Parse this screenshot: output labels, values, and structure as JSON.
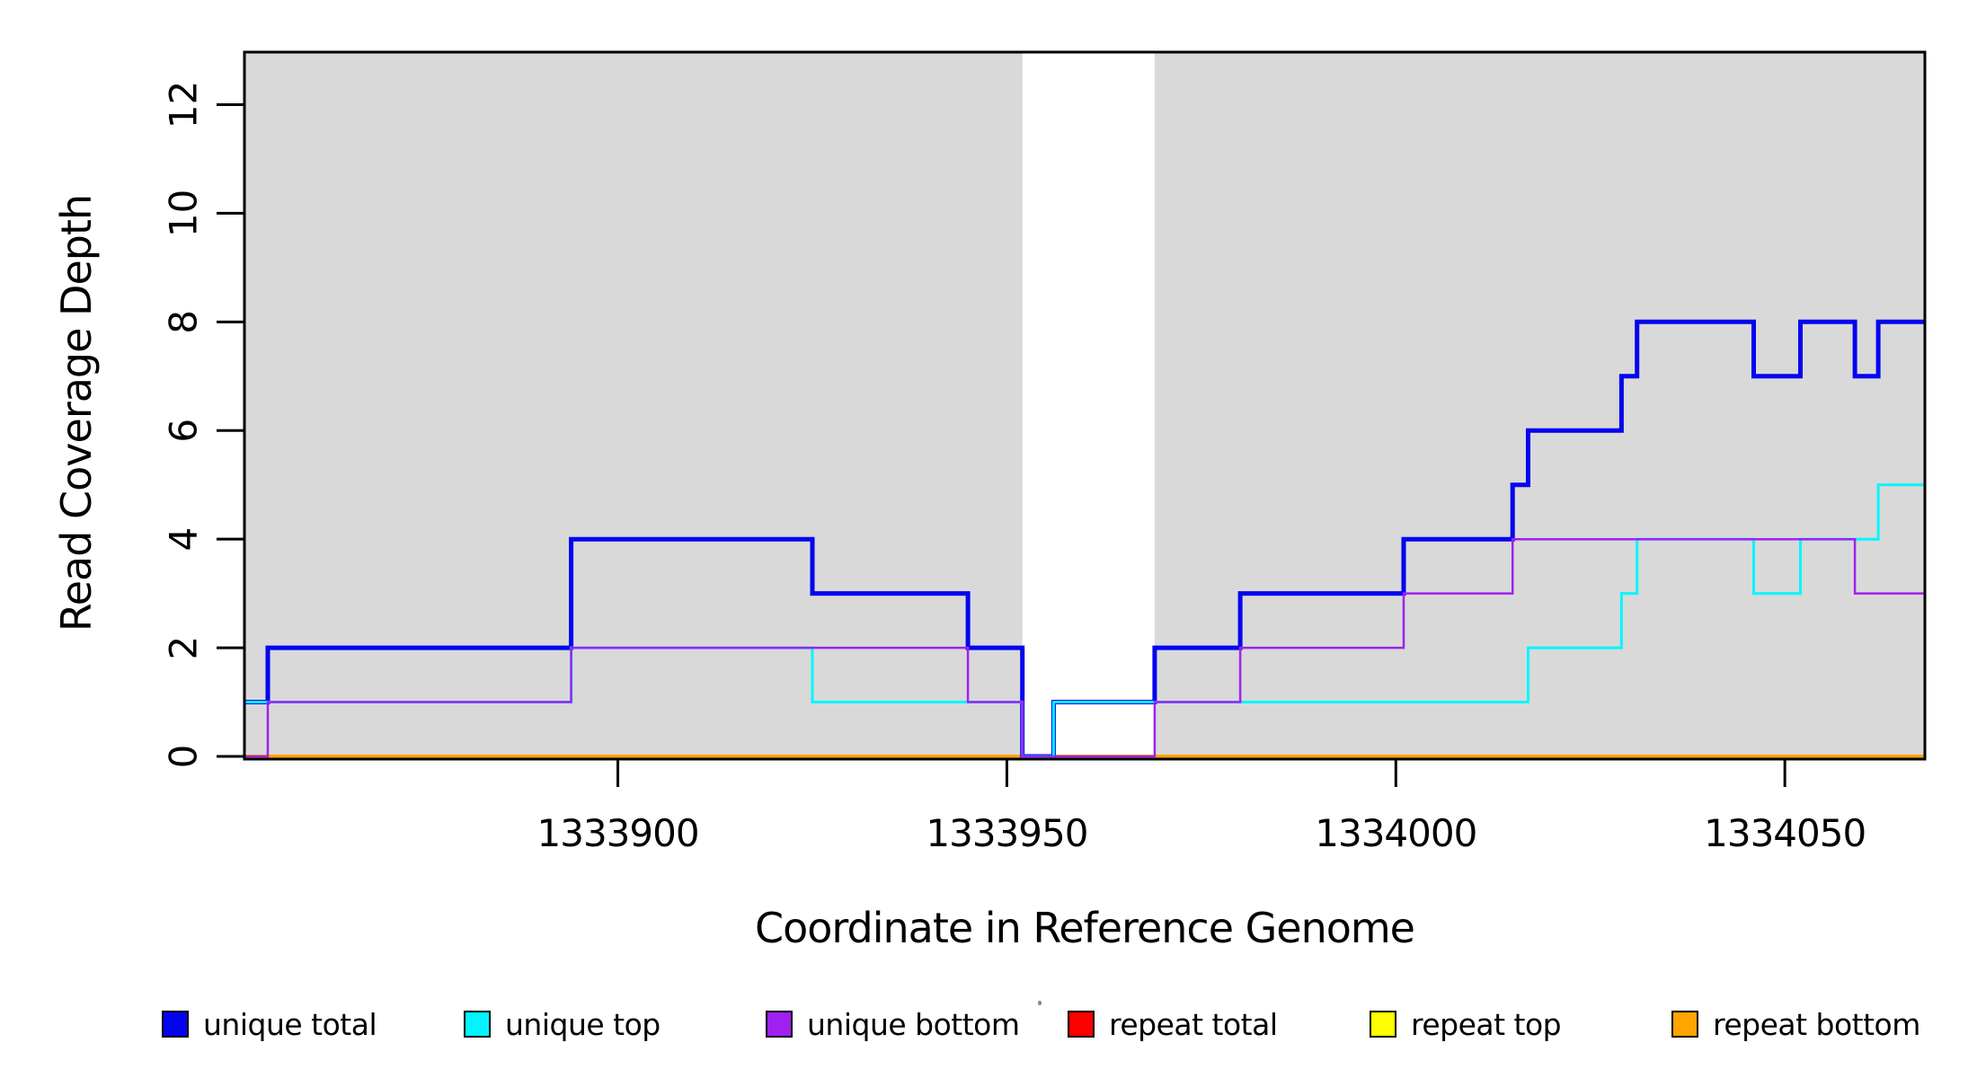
{
  "chart_data": {
    "type": "line",
    "subtype": "step-coverage",
    "title": "",
    "xlabel": "Coordinate in Reference Genome",
    "ylabel": "Read Coverage Depth",
    "xlim": [
      1333852,
      1334068
    ],
    "ylim": [
      0,
      13
    ],
    "grid": false,
    "background_color": "#ffffff",
    "shade_color": "#d9d9d9",
    "shaded_regions": [
      [
        1333852,
        1333952
      ],
      [
        1333969,
        1334068
      ]
    ],
    "x_ticks": [
      {
        "value": 1333900,
        "label": "1333900"
      },
      {
        "value": 1333950,
        "label": "1333950"
      },
      {
        "value": 1334000,
        "label": "1334000"
      },
      {
        "value": 1334050,
        "label": "1334050"
      }
    ],
    "y_ticks": [
      {
        "value": 0,
        "label": "0"
      },
      {
        "value": 2,
        "label": "2"
      },
      {
        "value": 4,
        "label": "4"
      },
      {
        "value": 6,
        "label": "6"
      },
      {
        "value": 8,
        "label": "8"
      },
      {
        "value": 10,
        "label": "10"
      },
      {
        "value": 12,
        "label": "12"
      }
    ],
    "breakpoints": [
      1333852,
      1333855,
      1333894,
      1333925,
      1333945,
      1333952,
      1333956,
      1333969,
      1333980,
      1334001,
      1334015,
      1334017,
      1334029,
      1334031,
      1334046,
      1334052,
      1334059,
      1334062
    ],
    "series": [
      {
        "name": "unique total",
        "color": "#0404f0",
        "width": 5,
        "values": [
          1,
          2,
          4,
          3,
          2,
          0,
          1,
          2,
          3,
          4,
          5,
          6,
          7,
          8,
          7,
          8,
          7,
          8
        ]
      },
      {
        "name": "unique top",
        "color": "#00f6ff",
        "width": 3,
        "values": [
          1,
          1,
          2,
          1,
          1,
          0,
          1,
          1,
          1,
          1,
          1,
          2,
          3,
          4,
          3,
          4,
          4,
          5
        ]
      },
      {
        "name": "unique bottom",
        "color": "#a020f0",
        "width": 2.5,
        "values": [
          0,
          1,
          2,
          2,
          1,
          0,
          0,
          1,
          2,
          3,
          4,
          4,
          4,
          4,
          4,
          4,
          3,
          3
        ]
      },
      {
        "name": "repeat total",
        "color": "#ff0000",
        "width": 2,
        "values": [
          0,
          0,
          0,
          0,
          0,
          0,
          0,
          0,
          0,
          0,
          0,
          0,
          0,
          0,
          0,
          0,
          0,
          0
        ]
      },
      {
        "name": "repeat top",
        "color": "#ffff00",
        "width": 2,
        "values": [
          0,
          0,
          0,
          0,
          0,
          0,
          0,
          0,
          0,
          0,
          0,
          0,
          0,
          0,
          0,
          0,
          0,
          0
        ]
      },
      {
        "name": "repeat bottom",
        "color": "#ffa500",
        "width": 4,
        "values": [
          0,
          0,
          0,
          0,
          0,
          0,
          0,
          0,
          0,
          0,
          0,
          0,
          0,
          0,
          0,
          0,
          0,
          0
        ]
      }
    ],
    "draw_order": [
      "repeat total",
      "repeat top",
      "repeat bottom",
      "unique total",
      "unique top",
      "unique bottom"
    ],
    "legend_position": "bottom",
    "legend": [
      {
        "label": "unique total",
        "color": "#0404f0"
      },
      {
        "label": "unique top",
        "color": "#00f6ff"
      },
      {
        "label": "unique bottom",
        "color": "#a020f0"
      },
      {
        "label": "repeat total",
        "color": "#ff0000"
      },
      {
        "label": "repeat top",
        "color": "#ffff00"
      },
      {
        "label": "repeat bottom",
        "color": "#ffa500"
      }
    ]
  }
}
